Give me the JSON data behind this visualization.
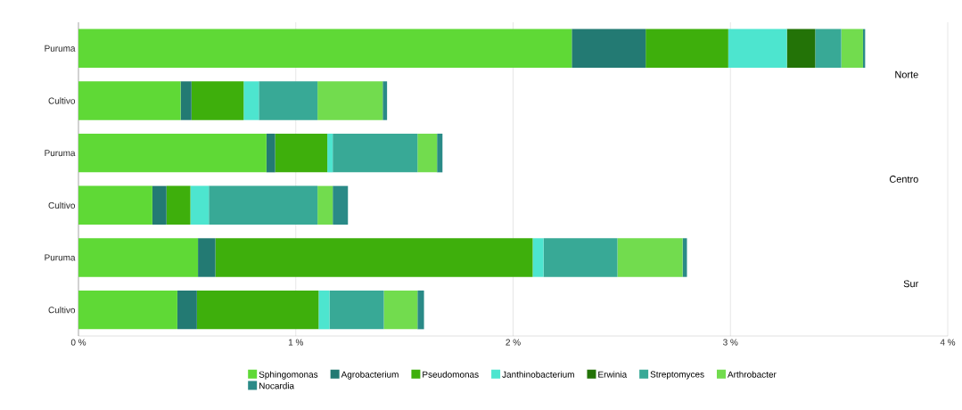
{
  "chart_data": {
    "type": "bar",
    "orientation": "horizontal",
    "stacked": true,
    "categories": [
      "Puruma",
      "Cultivo",
      "Puruma",
      "Cultivo",
      "Puruma",
      "Cultivo"
    ],
    "series": [
      {
        "name": "Sphingomonas",
        "color": "#5fd936",
        "values": [
          2.27,
          0.47,
          0.865,
          0.34,
          0.55,
          0.455
        ]
      },
      {
        "name": "Agrobacterium",
        "color": "#237a73",
        "values": [
          0.34,
          0.05,
          0.04,
          0.065,
          0.08,
          0.09
        ]
      },
      {
        "name": "Pseudomonas",
        "color": "#3eaf0c",
        "values": [
          0.38,
          0.24,
          0.24,
          0.11,
          1.46,
          0.56
        ]
      },
      {
        "name": "Janthinobacterium",
        "color": "#4de5cf",
        "values": [
          0.27,
          0.07,
          0.025,
          0.085,
          0.05,
          0.05
        ]
      },
      {
        "name": "Erwinia",
        "color": "#237307",
        "values": [
          0.13,
          0,
          0,
          0,
          0,
          0
        ]
      },
      {
        "name": "Streptomyces",
        "color": "#38a996",
        "values": [
          0.12,
          0.27,
          0.39,
          0.5,
          0.34,
          0.25
        ]
      },
      {
        "name": "Arthrobacter",
        "color": "#72dc4e",
        "values": [
          0.1,
          0.3,
          0.09,
          0.07,
          0.3,
          0.155
        ]
      },
      {
        "name": "Nocardia",
        "color": "#2a8a87",
        "values": [
          0.01,
          0.02,
          0.025,
          0.07,
          0.02,
          0.03
        ]
      }
    ],
    "xlim": [
      0,
      4
    ],
    "xticks": [
      {
        "value": 0,
        "label": "0 %"
      },
      {
        "value": 1,
        "label": "1 %"
      },
      {
        "value": 2,
        "label": "2 %"
      },
      {
        "value": 3,
        "label": "3 %"
      },
      {
        "value": 4,
        "label": "4 %"
      }
    ],
    "grid": "x",
    "legend": "bottom",
    "annotations": [
      "Norte",
      "Centro",
      "Sur"
    ]
  }
}
